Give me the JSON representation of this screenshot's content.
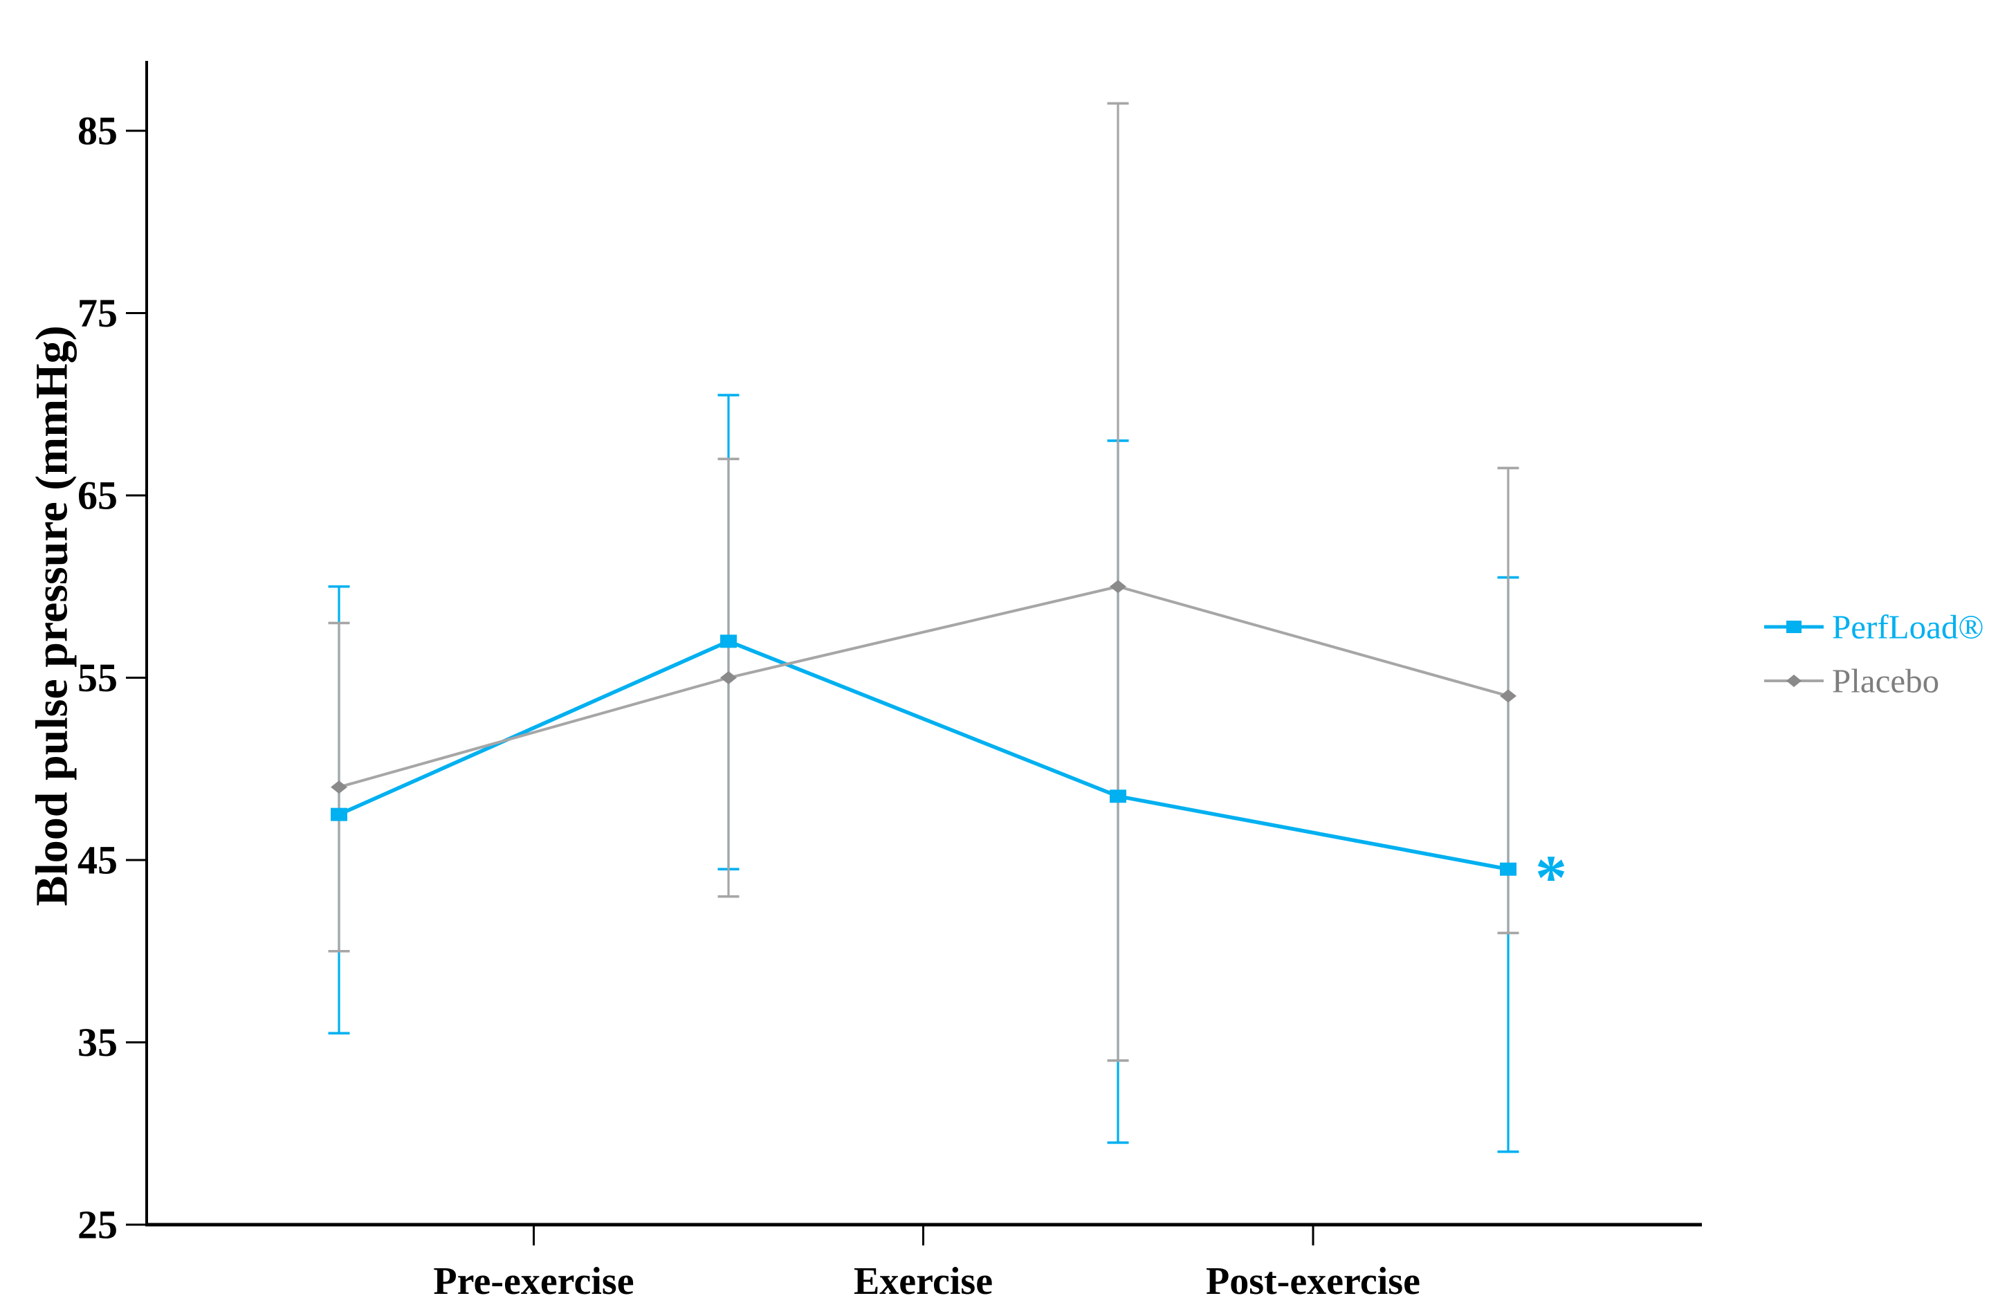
{
  "chart_data": {
    "type": "line",
    "title": "",
    "xlabel": "",
    "ylabel": "Blood pulse pressure (mmHg)",
    "ylim": [
      25,
      85
    ],
    "ytick_step": 10,
    "yticks": [
      85,
      75,
      65,
      55,
      45,
      35,
      25
    ],
    "x_axis_labels": [
      "Pre-exercise",
      "Exercise",
      "Post-exercise"
    ],
    "x_axis_label_placement": "ticks sit on the boundaries between the four unlabeled measurement points",
    "n_points": 4,
    "grid": "off",
    "legend_position": "right",
    "series": [
      {
        "name": "PerfLoad®",
        "marker": "square",
        "color": "#00B0F0",
        "label_color": "#00B0F0",
        "values": [
          47.5,
          57,
          48.5,
          44.5
        ],
        "error_upper": [
          60,
          70.5,
          68,
          60.5
        ],
        "error_lower": [
          35.5,
          44.5,
          29.5,
          29
        ]
      },
      {
        "name": "Placebo",
        "marker": "diamond",
        "color": "#A6A6A6",
        "marker_color": "#8A8A8A",
        "label_color": "#7E7E7E",
        "values": [
          49,
          55,
          60,
          54
        ],
        "error_upper": [
          58,
          67,
          86.5,
          66.5
        ],
        "error_lower": [
          40,
          43,
          34,
          41
        ]
      }
    ],
    "annotation": {
      "text": "*",
      "series": "PerfLoad®",
      "point_index": 3,
      "color": "#00B0F0"
    },
    "axis_color": "#000000",
    "tick_label_color": "#000000"
  }
}
